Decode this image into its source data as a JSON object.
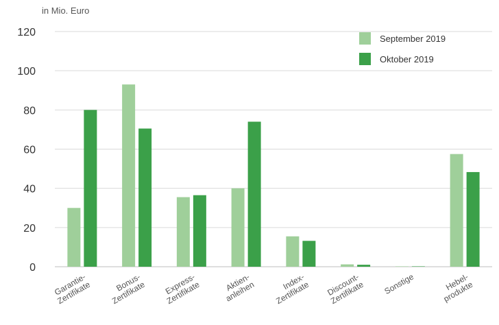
{
  "chart_data": {
    "type": "bar",
    "ylabel": "in Mio. Euro",
    "ylim": [
      0,
      120
    ],
    "yticks": [
      0,
      20,
      40,
      60,
      80,
      100,
      120
    ],
    "grid": true,
    "legend_position": "top-right",
    "categories": [
      [
        "Garantie-",
        "Zertifikate"
      ],
      [
        "Bonus-",
        "Zertifikate"
      ],
      [
        "Express-",
        "Zertifikate"
      ],
      [
        "Aktien-",
        "anleihen"
      ],
      [
        "Index-",
        "Zertifikate"
      ],
      [
        "Discount-",
        "Zertifikate"
      ],
      [
        "Sonstige"
      ],
      [
        "Hebel-",
        "produkte"
      ]
    ],
    "series": [
      {
        "name": "September 2019",
        "color": "#9fcf9a",
        "values": [
          30,
          93,
          35.5,
          40,
          15.5,
          1.2,
          0.2,
          57.5
        ]
      },
      {
        "name": "Oktober 2019",
        "color": "#3ba049",
        "values": [
          80,
          70.5,
          36.5,
          74,
          13.2,
          1.0,
          0.2,
          48.3
        ]
      }
    ]
  }
}
